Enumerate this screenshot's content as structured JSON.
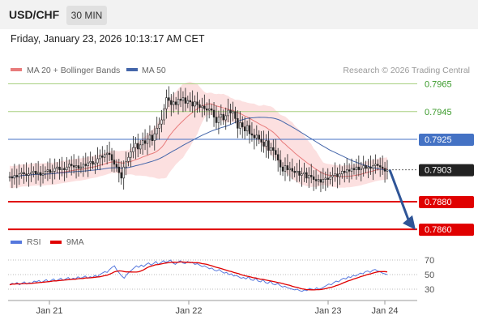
{
  "header": {
    "symbol": "USD/CHF",
    "timeframe": "30 MIN"
  },
  "datetime": "Friday, January 23, 2026 10:13:17 AM CET",
  "legend": {
    "ma20_label": "MA 20 + Bollinger Bands",
    "ma50_label": "MA 50",
    "rsi_label": "RSI",
    "rsi_ma_label": "9MA"
  },
  "credit": "Research © 2026 Trading Central",
  "colors": {
    "candle": "#222222",
    "ma20": "#e87b7b",
    "bollinger_fill": "#fbd5d5",
    "ma50": "#4466aa",
    "green_level": "#a8d080",
    "blue_level": "#4472c4",
    "red_level": "#e00000",
    "arrow": "#2f5597",
    "rsi": "#5577dd",
    "rsi_ma": "#e00000"
  },
  "chart_data": [
    {
      "type": "candlestick",
      "symbol": "USD/CHF",
      "interval": "30 MIN",
      "ylim": [
        0.7856,
        0.797
      ],
      "x_ticks": [
        "Jan 21",
        "Jan 22",
        "Jan 23",
        "Jan 24"
      ],
      "closes": [
        0.7898,
        0.7897,
        0.7899,
        0.7898,
        0.79,
        0.7901,
        0.79,
        0.7899,
        0.79,
        0.7901,
        0.7902,
        0.79,
        0.7901,
        0.7899,
        0.79,
        0.7902,
        0.7903,
        0.7901,
        0.7902,
        0.7904,
        0.7905,
        0.7903,
        0.7904,
        0.7903,
        0.7905,
        0.7907,
        0.7906,
        0.7905,
        0.7906,
        0.7904,
        0.7905,
        0.7907,
        0.7906,
        0.7908,
        0.7909,
        0.7907,
        0.7908,
        0.7911,
        0.7913,
        0.7912,
        0.7914,
        0.7915,
        0.7914,
        0.791,
        0.7907,
        0.7905,
        0.7901,
        0.7897,
        0.7905,
        0.7909,
        0.7912,
        0.7916,
        0.7919,
        0.7922,
        0.7918,
        0.7921,
        0.7924,
        0.7922,
        0.7925,
        0.7928,
        0.7924,
        0.7929,
        0.7933,
        0.7936,
        0.7939,
        0.7947,
        0.7955,
        0.7953,
        0.795,
        0.7952,
        0.795,
        0.7954,
        0.7953,
        0.7955,
        0.7951,
        0.7953,
        0.7952,
        0.7949,
        0.7952,
        0.795,
        0.7948,
        0.7949,
        0.7947,
        0.7946,
        0.7947,
        0.7946,
        0.7941,
        0.7937,
        0.7941,
        0.7943,
        0.7939,
        0.7942,
        0.7946,
        0.7944,
        0.7945,
        0.794,
        0.7933,
        0.7937,
        0.7934,
        0.7931,
        0.7935,
        0.7929,
        0.7928,
        0.7926,
        0.7928,
        0.7925,
        0.7923,
        0.792,
        0.7924,
        0.7917,
        0.7919,
        0.7917,
        0.7914,
        0.791,
        0.7905,
        0.7902,
        0.7906,
        0.7903,
        0.7904,
        0.7902,
        0.7901,
        0.7902,
        0.7899,
        0.79,
        0.7901,
        0.7897,
        0.7899,
        0.7898,
        0.7896,
        0.7895,
        0.7896,
        0.7894,
        0.7896,
        0.7897,
        0.7896,
        0.7898,
        0.7899,
        0.79,
        0.7898,
        0.79,
        0.7902,
        0.7901,
        0.7903,
        0.7902,
        0.7904,
        0.7903,
        0.7905,
        0.7903,
        0.7904,
        0.7906,
        0.7904,
        0.7905,
        0.7904,
        0.7906,
        0.7907,
        0.7906,
        0.7905,
        0.7904,
        0.7902,
        0.7903
      ],
      "levels": [
        {
          "value": 0.7965,
          "label": "0.7965",
          "kind": "resistance"
        },
        {
          "value": 0.7945,
          "label": "0.7945",
          "kind": "resistance"
        },
        {
          "value": 0.7925,
          "label": "0.7925",
          "kind": "pivot"
        },
        {
          "value": 0.7903,
          "label": "0.7903",
          "kind": "last"
        },
        {
          "value": 0.788,
          "label": "0.7880",
          "kind": "support"
        },
        {
          "value": 0.786,
          "label": "0.7860",
          "kind": "support"
        }
      ],
      "indicators": [
        "MA 20 + Bollinger Bands",
        "MA 50"
      ],
      "arrow": {
        "from": 0.7903,
        "to": 0.7862
      }
    },
    {
      "type": "line",
      "series": [
        {
          "name": "RSI"
        },
        {
          "name": "9MA"
        }
      ],
      "ylim": [
        20,
        80
      ],
      "y_ticks": [
        "70",
        "50",
        "30"
      ],
      "rsi_values": [
        36,
        38,
        37,
        39,
        36,
        38,
        40,
        37,
        39,
        38,
        41,
        40,
        42,
        39,
        41,
        43,
        40,
        42,
        44,
        41,
        43,
        45,
        42,
        44,
        46,
        43,
        45,
        44,
        47,
        45,
        46,
        48,
        45,
        47,
        46,
        49,
        47,
        50,
        52,
        54,
        53,
        57,
        60,
        62,
        56,
        52,
        48,
        45,
        50,
        53,
        56,
        59,
        62,
        60,
        63,
        61,
        64,
        66,
        63,
        65,
        68,
        64,
        66,
        69,
        67,
        68,
        70,
        66,
        64,
        67,
        69,
        66,
        65,
        68,
        66,
        67,
        64,
        65,
        63,
        61,
        62,
        60,
        58,
        59,
        56,
        55,
        57,
        54,
        52,
        53,
        50,
        51,
        48,
        49,
        47,
        45,
        46,
        44,
        47,
        43,
        42,
        45,
        41,
        40,
        43,
        39,
        38,
        41,
        37,
        36,
        38,
        35,
        33,
        34,
        32,
        31,
        30,
        29,
        30,
        28,
        27,
        29,
        28,
        31,
        30,
        29,
        32,
        30,
        31,
        33,
        35,
        37,
        36,
        39,
        41,
        40,
        43,
        45,
        44,
        47,
        46,
        49,
        48,
        50,
        52,
        51,
        54,
        55,
        53,
        56,
        57,
        55,
        54,
        52,
        51,
        50
      ]
    }
  ]
}
